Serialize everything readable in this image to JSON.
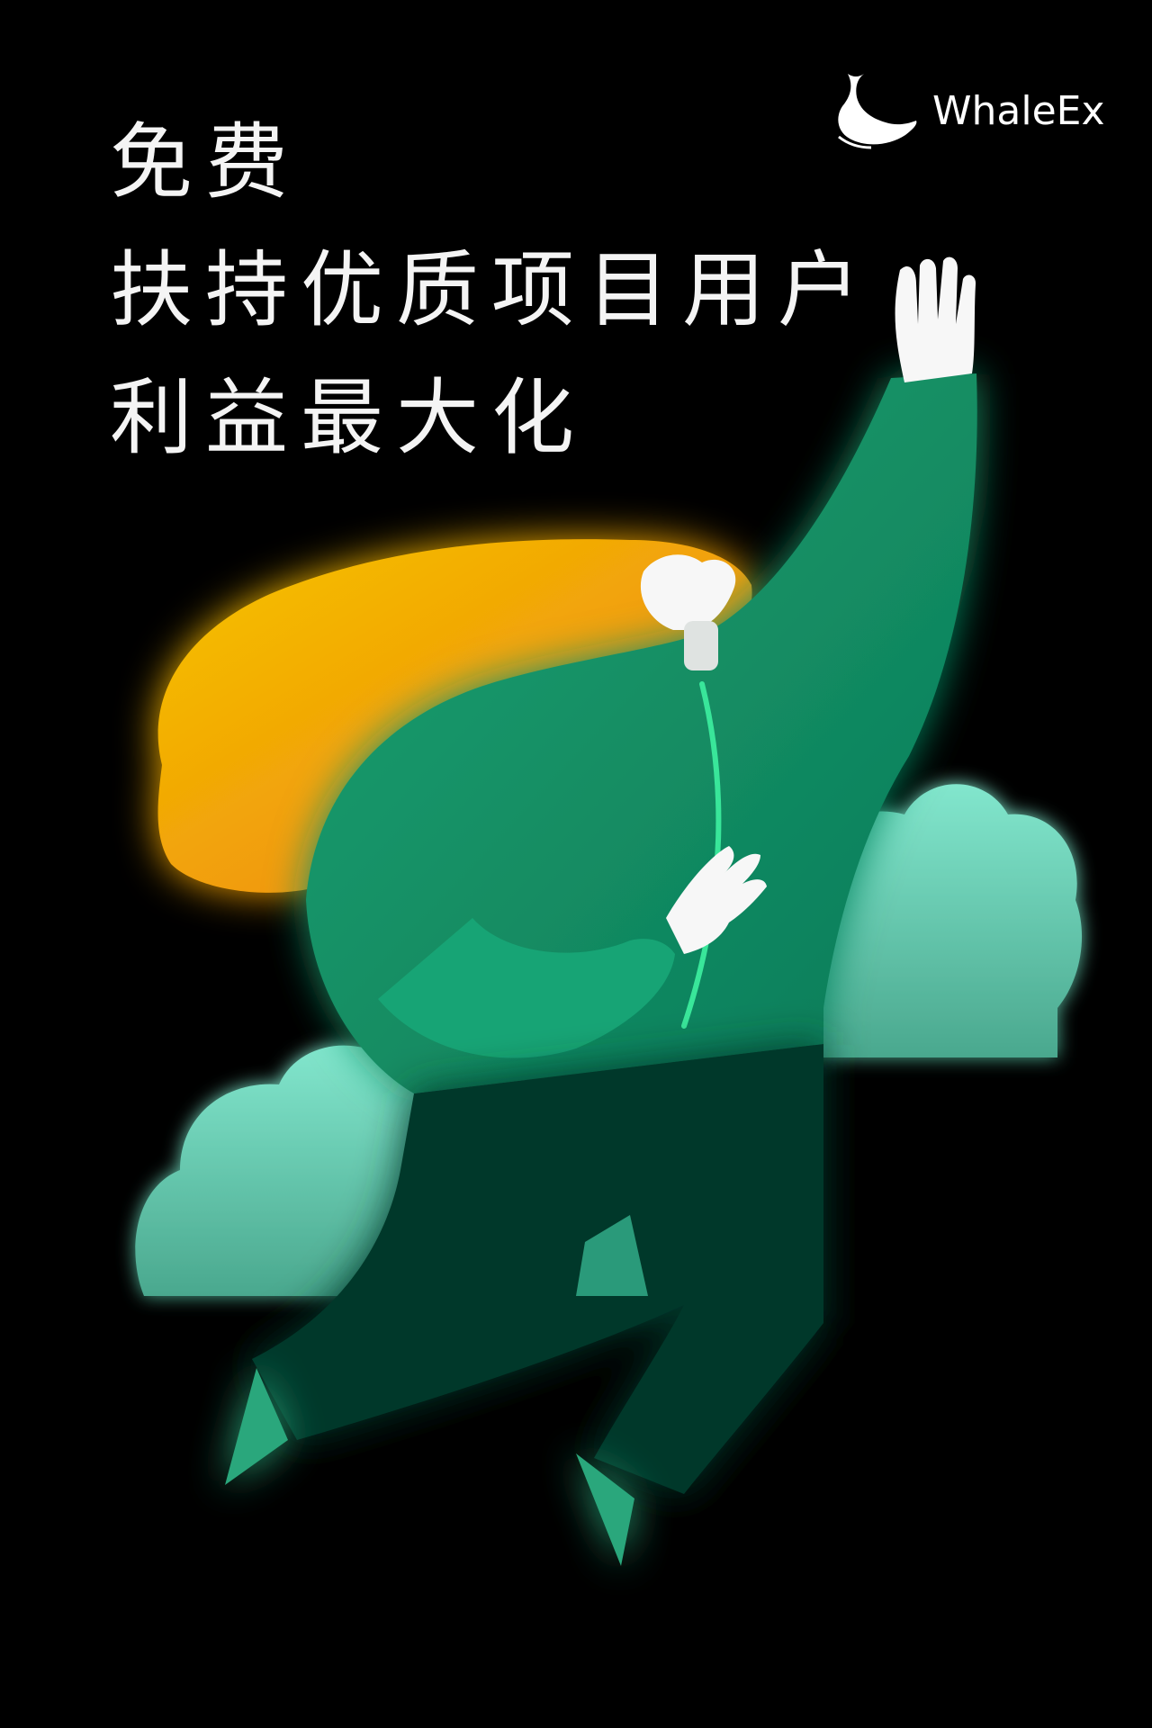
{
  "headline": {
    "line1": "免费",
    "line2": "扶持优质项目用户",
    "line3": "利益最大化"
  },
  "brand": {
    "name": "WhaleEx",
    "logo_icon": "whale-icon"
  },
  "illustration": {
    "subject": "flying-person-illustration",
    "colors": {
      "background": "#000000",
      "hair_start": "#f2b705",
      "hair_end": "#ee8a10",
      "sweater": "#16966a",
      "sweater_dark": "#0f7a55",
      "pants": "#063325",
      "shoes": "#2aa77b",
      "cloud": "#79d9c2",
      "glow": "#1fe0a8",
      "skin": "#f7f7f7"
    }
  }
}
